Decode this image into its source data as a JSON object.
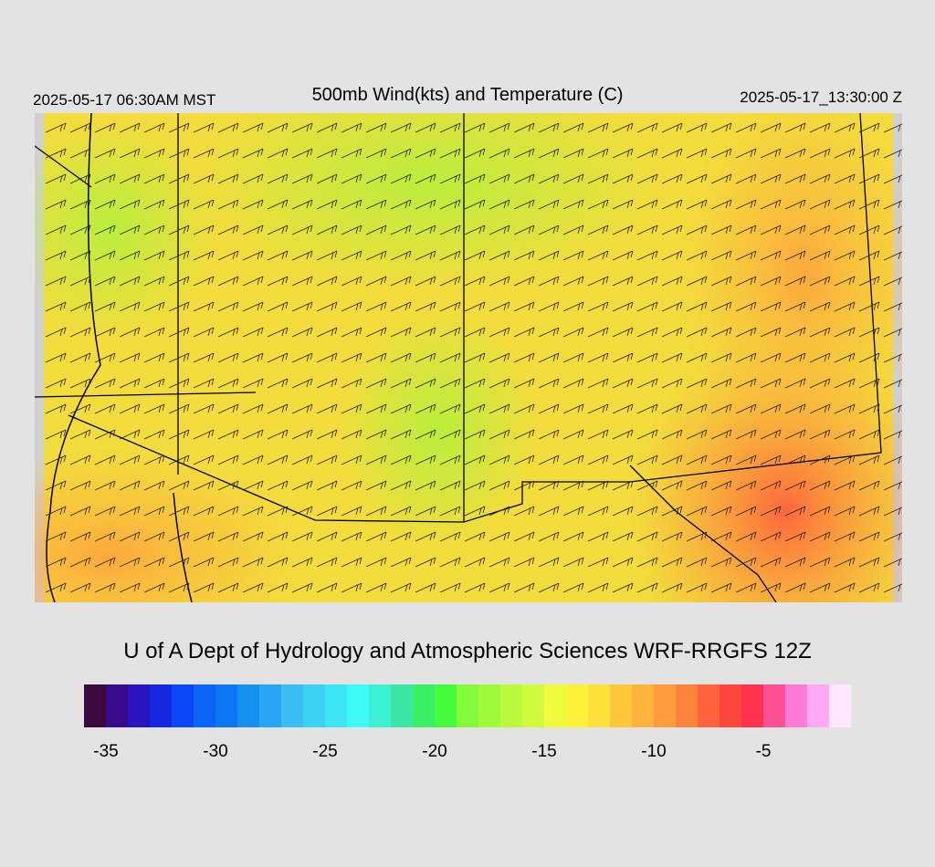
{
  "header": {
    "left_time": "2025-05-17 06:30AM MST",
    "title": "500mb Wind(kts) and Temperature (C)",
    "right_time": "2025-05-17_13:30:00 Z"
  },
  "credit": "U of A Dept of Hydrology and Atmospheric Sciences WRF-RRGFS 12Z",
  "colorbar": {
    "range": [
      -36,
      -1
    ],
    "colors": [
      "#3d0a3f",
      "#3a0a8c",
      "#2a14c0",
      "#1428e0",
      "#0a46f5",
      "#0a64f5",
      "#0a78f0",
      "#1490f0",
      "#28a5f5",
      "#3cbef5",
      "#3cd2f5",
      "#3ce6f5",
      "#3cfaf5",
      "#3cf0d2",
      "#3ce6a5",
      "#3cf064",
      "#46fa3c",
      "#82fa3c",
      "#a0fa3c",
      "#b9fa3c",
      "#d2fa3c",
      "#f0fa3c",
      "#fff03c",
      "#ffe13c",
      "#ffc83c",
      "#ffb43c",
      "#ff9b3c",
      "#ff823c",
      "#ff643c",
      "#ff463c",
      "#ff3250",
      "#ff5096",
      "#ff7ad2",
      "#ffa8f5",
      "#ffe6fa"
    ],
    "ticks": [
      -35,
      -30,
      -25,
      -20,
      -15,
      -10,
      -5
    ]
  }
}
